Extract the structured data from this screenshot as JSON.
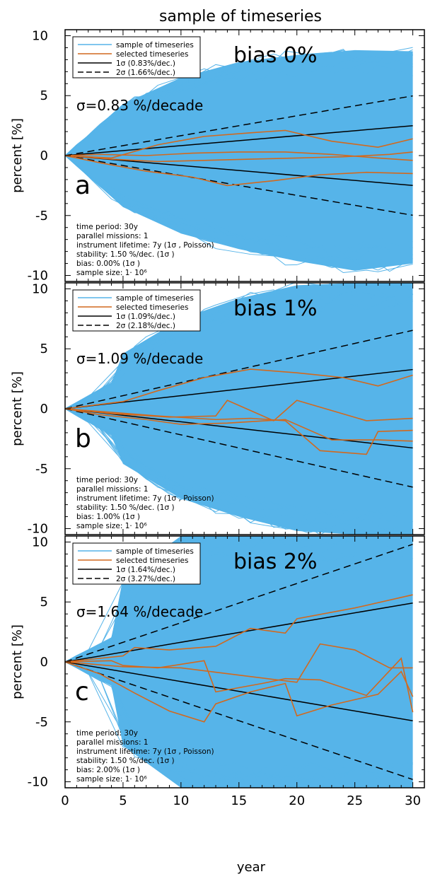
{
  "title": "sample of timeseries",
  "xlabel": "year",
  "ylabel": "percent [%]",
  "x_ticks": [
    "0",
    "5",
    "10",
    "15",
    "20",
    "25",
    "30"
  ],
  "y_ticks": [
    "10",
    "5",
    "0",
    "-5",
    "-10"
  ],
  "colors": {
    "sample": "#56b4e9",
    "selected": "#d2691e",
    "line": "#000000"
  },
  "legend_labels": {
    "sample": "sample of timeseries",
    "selected": "selected timeseries"
  },
  "chart_data": [
    {
      "type": "line",
      "panel_letter": "a",
      "bias_label": "bias 0%",
      "sigma_label": "σ=0.83 %/decade",
      "legend_1sigma": "1σ  (0.83%/dec.)",
      "legend_2sigma": "2σ  (1.66%/dec.)",
      "info": [
        "time period: 30y",
        "parallel missions: 1",
        "instrument lifetime: 7y (1σ , Poisson)",
        "stability: 1.50 %/dec. (1σ )",
        "bias: 0.00% (1σ )",
        "sample size: 1· 10⁶"
      ],
      "xlim": [
        0,
        31
      ],
      "ylim": [
        -10.5,
        10.5
      ],
      "envelope_max_x": [
        0,
        5,
        10,
        15,
        20,
        25,
        30
      ],
      "envelope_max_y": [
        0,
        4.3,
        6.5,
        7.8,
        8.4,
        8.8,
        8.7
      ],
      "envelope_min_y": [
        0,
        -4.3,
        -6.5,
        -7.8,
        -8.8,
        -9.6,
        -9.0
      ],
      "one_sigma_end": 2.49,
      "two_sigma_end": 4.98,
      "selected_series": [
        {
          "x": [
            0,
            4,
            8,
            12,
            16,
            19,
            23,
            27,
            30
          ],
          "y": [
            0,
            -0.2,
            0.9,
            1.6,
            1.9,
            2.1,
            1.2,
            0.7,
            1.4
          ]
        },
        {
          "x": [
            0,
            3,
            7,
            11,
            15,
            19,
            23,
            27,
            30
          ],
          "y": [
            0,
            0.1,
            0.0,
            0.2,
            0.3,
            0.3,
            0.1,
            -0.2,
            -0.4
          ]
        },
        {
          "x": [
            0,
            3,
            7,
            11,
            14,
            18,
            22,
            26,
            30
          ],
          "y": [
            0,
            -0.6,
            -1.3,
            -1.8,
            -2.5,
            -2.1,
            -1.6,
            -1.4,
            -1.5
          ]
        },
        {
          "x": [
            0,
            4,
            8,
            12,
            16,
            20,
            24,
            28,
            30
          ],
          "y": [
            0,
            -0.3,
            -0.5,
            -0.4,
            -0.3,
            -0.2,
            -0.1,
            0.1,
            0.3
          ]
        }
      ]
    },
    {
      "type": "line",
      "panel_letter": "b",
      "bias_label": "bias 1%",
      "sigma_label": "σ=1.09 %/decade",
      "legend_1sigma": "1σ  (1.09%/dec.)",
      "legend_2sigma": "2σ  (2.18%/dec.)",
      "info": [
        "time period: 30y",
        "parallel missions: 1",
        "instrument lifetime: 7y (1σ , Poisson)",
        "stability: 1.50 %/dec. (1σ )",
        "bias: 1.00% (1σ )",
        "sample size: 1· 10⁶"
      ],
      "xlim": [
        0,
        31
      ],
      "ylim": [
        -10.5,
        10.5
      ],
      "envelope_max_x": [
        0,
        4,
        5,
        10,
        15,
        20,
        25,
        30
      ],
      "envelope_max_y": [
        0,
        2.2,
        4.6,
        7.5,
        9.2,
        10.3,
        10.5,
        10.5
      ],
      "envelope_min_y": [
        0,
        -2.2,
        -4.6,
        -7.5,
        -9.0,
        -10.2,
        -10.5,
        -10.5
      ],
      "one_sigma_end": 3.27,
      "two_sigma_end": 6.54,
      "selected_series": [
        {
          "x": [
            0,
            5,
            8,
            12,
            16,
            20,
            24,
            27,
            30
          ],
          "y": [
            0,
            0.6,
            1.5,
            2.6,
            3.3,
            3.0,
            2.6,
            1.9,
            2.8
          ]
        },
        {
          "x": [
            0,
            4,
            9,
            13,
            14,
            18,
            20,
            26,
            30
          ],
          "y": [
            0,
            -0.4,
            -0.7,
            -0.6,
            0.7,
            -1.0,
            0.7,
            -1.0,
            -0.8
          ]
        },
        {
          "x": [
            0,
            3,
            7,
            10,
            14,
            19,
            23,
            27,
            30
          ],
          "y": [
            0,
            -0.5,
            -0.9,
            -1.3,
            -1.2,
            -0.9,
            -2.6,
            -2.6,
            -2.7
          ]
        },
        {
          "x": [
            0,
            4,
            8,
            13,
            16,
            19,
            22,
            26,
            27,
            30
          ],
          "y": [
            0,
            -0.3,
            -0.6,
            -0.9,
            -0.8,
            -1.0,
            -3.5,
            -3.8,
            -1.9,
            -1.8
          ]
        }
      ]
    },
    {
      "type": "line",
      "panel_letter": "c",
      "bias_label": "bias 2%",
      "sigma_label": "σ=1.64 %/decade",
      "legend_1sigma": "1σ  (1.64%/dec.)",
      "legend_2sigma": "2σ  (3.27%/dec.)",
      "info": [
        "time period: 30y",
        "parallel missions: 1",
        "instrument lifetime: 7y (1σ , Poisson)",
        "stability: 1.50 %/dec. (1σ )",
        "bias: 2.00% (1σ )",
        "sample size: 1· 10⁶"
      ],
      "xlim": [
        0,
        31
      ],
      "ylim": [
        -10.5,
        10.5
      ],
      "envelope_max_x": [
        0,
        4,
        5,
        10,
        15,
        20,
        25,
        30
      ],
      "envelope_max_y": [
        0,
        2.0,
        7.0,
        10.5,
        10.5,
        10.5,
        10.5,
        10.5
      ],
      "envelope_min_y": [
        0,
        -2.0,
        -7.0,
        -10.5,
        -10.5,
        -10.5,
        -10.5,
        -10.5
      ],
      "one_sigma_end": 4.91,
      "two_sigma_end": 9.81,
      "selected_series": [
        {
          "x": [
            0,
            3,
            5,
            6,
            9,
            13,
            16,
            19,
            20,
            25,
            30
          ],
          "y": [
            0,
            0.3,
            0.5,
            1.2,
            1.0,
            1.3,
            2.8,
            2.4,
            3.6,
            4.5,
            5.6
          ]
        },
        {
          "x": [
            0,
            4,
            5,
            8,
            12,
            13,
            17,
            19,
            22,
            26,
            29,
            30
          ],
          "y": [
            0,
            0.1,
            -0.3,
            -0.5,
            0.1,
            -2.5,
            -1.8,
            -1.4,
            -1.5,
            -2.8,
            0.3,
            -4.2
          ]
        },
        {
          "x": [
            0,
            3,
            6,
            9,
            12,
            13,
            16,
            19,
            20,
            23,
            27,
            29,
            30
          ],
          "y": [
            0,
            -1.0,
            -2.6,
            -4.1,
            -5.0,
            -3.5,
            -2.5,
            -1.8,
            -4.5,
            -3.6,
            -2.7,
            -0.8,
            -2.9
          ]
        },
        {
          "x": [
            0,
            5,
            10,
            15,
            20,
            22,
            25,
            28,
            30
          ],
          "y": [
            0,
            -0.4,
            -0.5,
            -1.1,
            -1.7,
            1.5,
            1.0,
            -0.5,
            -0.5
          ]
        }
      ]
    }
  ]
}
